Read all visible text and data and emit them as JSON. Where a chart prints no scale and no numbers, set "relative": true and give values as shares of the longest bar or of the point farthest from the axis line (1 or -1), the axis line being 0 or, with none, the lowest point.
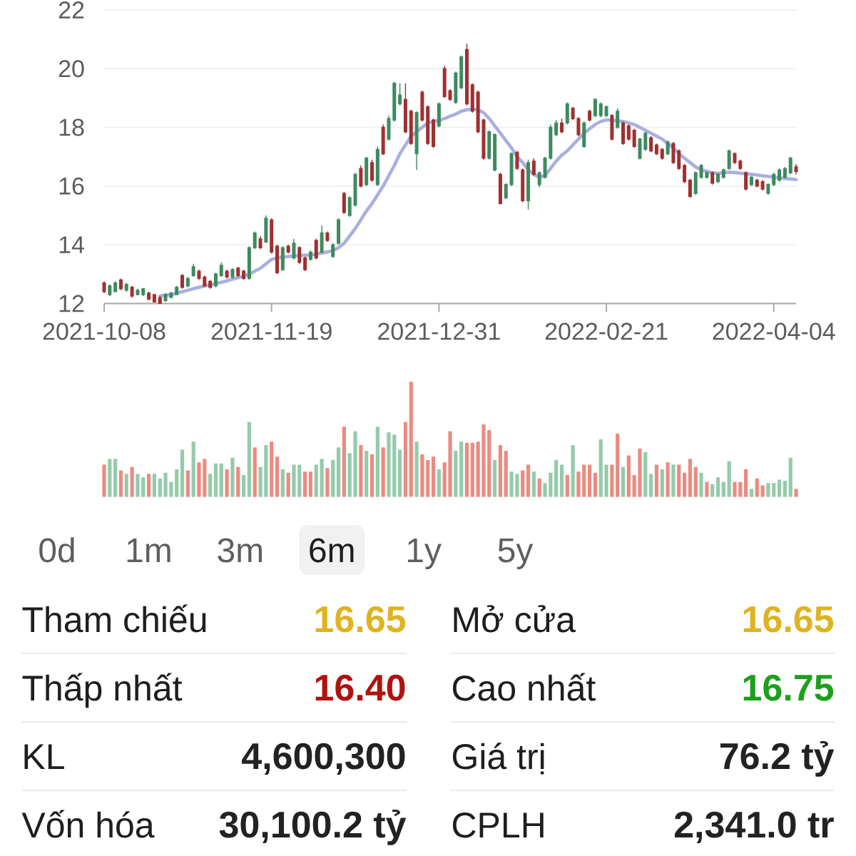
{
  "chart_data": [
    {
      "type": "candlestick",
      "categories": [
        "2021-10-08",
        null,
        null,
        null,
        null,
        null,
        null,
        null,
        null,
        null,
        null,
        null,
        null,
        null,
        null,
        null,
        null,
        null,
        null,
        null,
        null,
        null,
        null,
        null,
        null,
        null,
        null,
        null,
        null,
        null,
        "2021-11-19",
        null,
        null,
        null,
        null,
        null,
        null,
        null,
        null,
        null,
        null,
        null,
        null,
        null,
        null,
        null,
        null,
        null,
        null,
        null,
        null,
        null,
        null,
        null,
        null,
        null,
        null,
        null,
        null,
        null,
        "2021-12-31",
        null,
        null,
        null,
        null,
        null,
        null,
        null,
        null,
        null,
        null,
        null,
        null,
        null,
        null,
        null,
        null,
        null,
        null,
        null,
        null,
        null,
        null,
        null,
        null,
        null,
        null,
        null,
        null,
        null,
        "2022-02-21",
        null,
        null,
        null,
        null,
        null,
        null,
        null,
        null,
        null,
        null,
        null,
        null,
        null,
        null,
        null,
        null,
        null,
        null,
        null,
        null,
        null,
        null,
        null,
        null,
        null,
        null,
        null,
        null,
        null,
        "2022-04-04",
        null,
        null,
        null,
        null
      ],
      "ylim": [
        12,
        22
      ],
      "yticks": [
        12,
        14,
        16,
        18,
        20,
        22
      ],
      "grid": "y",
      "ohlc": [
        [
          12.7,
          12.75,
          12.35,
          12.4
        ],
        [
          12.3,
          12.65,
          12.25,
          12.6
        ],
        [
          12.4,
          12.75,
          12.4,
          12.7
        ],
        [
          12.8,
          12.85,
          12.45,
          12.5
        ],
        [
          12.45,
          12.7,
          12.4,
          12.65
        ],
        [
          12.55,
          12.6,
          12.2,
          12.25
        ],
        [
          12.3,
          12.5,
          12.3,
          12.45
        ],
        [
          12.3,
          12.5,
          12.25,
          12.5
        ],
        [
          12.35,
          12.4,
          12.1,
          12.15
        ],
        [
          12.3,
          12.3,
          12.05,
          12.05
        ],
        [
          12.2,
          12.25,
          12.0,
          12.0
        ],
        [
          12.1,
          12.35,
          12.05,
          12.3
        ],
        [
          12.2,
          12.4,
          12.2,
          12.35
        ],
        [
          12.3,
          12.6,
          12.3,
          12.55
        ],
        [
          12.95,
          13.0,
          12.5,
          12.55
        ],
        [
          12.6,
          12.9,
          12.55,
          12.85
        ],
        [
          12.95,
          13.35,
          12.9,
          13.25
        ],
        [
          13.1,
          13.15,
          12.8,
          12.85
        ],
        [
          12.9,
          12.95,
          12.55,
          12.6
        ],
        [
          12.75,
          12.8,
          12.5,
          12.55
        ],
        [
          12.6,
          13.05,
          12.55,
          13.0
        ],
        [
          12.95,
          13.4,
          12.9,
          13.3
        ],
        [
          13.1,
          13.15,
          12.85,
          12.9
        ],
        [
          12.9,
          13.2,
          12.85,
          13.15
        ],
        [
          13.2,
          13.25,
          12.9,
          12.95
        ],
        [
          13.1,
          13.15,
          12.8,
          12.85
        ],
        [
          12.85,
          13.95,
          12.8,
          13.9
        ],
        [
          13.9,
          14.45,
          13.85,
          14.4
        ],
        [
          14.2,
          14.3,
          13.85,
          13.9
        ],
        [
          14.1,
          15.0,
          14.05,
          14.9
        ],
        [
          14.85,
          14.9,
          13.7,
          13.75
        ],
        [
          13.95,
          14.0,
          13.0,
          13.05
        ],
        [
          13.15,
          13.95,
          13.1,
          13.9
        ],
        [
          13.95,
          14.0,
          13.7,
          13.75
        ],
        [
          13.55,
          14.2,
          13.5,
          14.05
        ],
        [
          13.9,
          13.95,
          13.35,
          13.4
        ],
        [
          13.55,
          13.6,
          13.1,
          13.15
        ],
        [
          13.5,
          13.8,
          13.45,
          13.75
        ],
        [
          14.15,
          14.2,
          13.5,
          13.55
        ],
        [
          13.75,
          14.65,
          13.7,
          14.4
        ],
        [
          14.4,
          14.45,
          14.1,
          14.15
        ],
        [
          13.6,
          14.05,
          13.55,
          14.0
        ],
        [
          14.05,
          14.9,
          14.0,
          14.85
        ],
        [
          15.75,
          15.8,
          15.05,
          15.1
        ],
        [
          15.0,
          15.65,
          14.95,
          15.6
        ],
        [
          15.35,
          16.45,
          15.3,
          16.4
        ],
        [
          16.6,
          16.7,
          15.95,
          16.0
        ],
        [
          16.05,
          17.0,
          16.0,
          16.95
        ],
        [
          16.8,
          16.9,
          16.15,
          16.2
        ],
        [
          16.05,
          17.35,
          16.0,
          17.25
        ],
        [
          18.0,
          18.1,
          17.05,
          17.1
        ],
        [
          17.6,
          18.4,
          17.55,
          18.3
        ],
        [
          18.25,
          19.55,
          18.2,
          19.5
        ],
        [
          18.8,
          19.5,
          18.75,
          19.1
        ],
        [
          18.95,
          19.5,
          17.8,
          17.85
        ],
        [
          18.55,
          18.6,
          17.4,
          17.45
        ],
        [
          17.1,
          18.55,
          16.55,
          18.5
        ],
        [
          19.2,
          19.25,
          18.2,
          18.25
        ],
        [
          18.7,
          18.75,
          17.4,
          17.45
        ],
        [
          18.25,
          18.3,
          17.3,
          17.35
        ],
        [
          18.05,
          18.85,
          18.0,
          18.8
        ],
        [
          20.0,
          20.1,
          19.0,
          19.05
        ],
        [
          19.25,
          19.3,
          18.9,
          18.95
        ],
        [
          18.85,
          19.9,
          18.8,
          19.85
        ],
        [
          19.35,
          20.45,
          19.3,
          20.4
        ],
        [
          20.65,
          20.85,
          18.75,
          18.8
        ],
        [
          19.45,
          19.5,
          18.5,
          18.55
        ],
        [
          19.2,
          19.25,
          17.8,
          17.85
        ],
        [
          18.25,
          18.3,
          16.9,
          16.95
        ],
        [
          16.95,
          17.9,
          16.9,
          17.85
        ],
        [
          16.55,
          17.8,
          16.5,
          17.75
        ],
        [
          16.4,
          16.45,
          15.4,
          15.4
        ],
        [
          15.6,
          16.1,
          15.55,
          16.05
        ],
        [
          16.05,
          17.15,
          16.0,
          17.1
        ],
        [
          17.15,
          17.2,
          16.55,
          16.6
        ],
        [
          16.55,
          16.6,
          15.45,
          15.5
        ],
        [
          15.5,
          16.9,
          15.2,
          16.8
        ],
        [
          16.85,
          16.95,
          16.35,
          16.4
        ],
        [
          16.05,
          16.5,
          15.95,
          16.45
        ],
        [
          16.3,
          17.0,
          16.25,
          16.95
        ],
        [
          16.95,
          18.1,
          16.9,
          18.0
        ],
        [
          17.75,
          18.25,
          17.7,
          18.15
        ],
        [
          18.15,
          18.3,
          17.8,
          17.85
        ],
        [
          18.15,
          18.85,
          18.1,
          18.8
        ],
        [
          18.65,
          18.7,
          18.25,
          18.3
        ],
        [
          18.3,
          18.35,
          17.7,
          17.75
        ],
        [
          17.35,
          18.2,
          17.3,
          18.15
        ],
        [
          18.55,
          18.6,
          18.2,
          18.25
        ],
        [
          18.4,
          19.0,
          18.35,
          18.95
        ],
        [
          18.4,
          18.85,
          18.35,
          18.8
        ],
        [
          18.4,
          18.75,
          18.35,
          18.7
        ],
        [
          18.4,
          18.45,
          17.55,
          17.6
        ],
        [
          18.0,
          18.65,
          17.95,
          18.55
        ],
        [
          18.15,
          18.2,
          17.4,
          17.45
        ],
        [
          18.05,
          18.1,
          17.55,
          17.6
        ],
        [
          17.9,
          17.95,
          17.3,
          17.35
        ],
        [
          16.95,
          17.65,
          16.9,
          17.6
        ],
        [
          17.25,
          17.85,
          17.2,
          17.8
        ],
        [
          17.65,
          17.7,
          17.15,
          17.2
        ],
        [
          17.4,
          17.45,
          17.05,
          17.1
        ],
        [
          17.25,
          17.3,
          16.9,
          16.95
        ],
        [
          17.1,
          17.55,
          17.05,
          17.5
        ],
        [
          17.45,
          17.5,
          16.75,
          16.8
        ],
        [
          17.2,
          17.25,
          16.55,
          16.6
        ],
        [
          16.7,
          16.75,
          16.1,
          16.15
        ],
        [
          16.2,
          16.25,
          15.6,
          15.65
        ],
        [
          15.75,
          16.5,
          15.7,
          16.45
        ],
        [
          16.3,
          16.75,
          16.25,
          16.7
        ],
        [
          16.3,
          16.5,
          16.25,
          16.45
        ],
        [
          16.45,
          16.5,
          16.05,
          16.1
        ],
        [
          16.15,
          16.45,
          16.1,
          16.4
        ],
        [
          16.3,
          16.6,
          16.25,
          16.55
        ],
        [
          16.6,
          17.25,
          16.55,
          17.2
        ],
        [
          17.1,
          17.15,
          16.75,
          16.8
        ],
        [
          16.85,
          16.9,
          16.55,
          16.6
        ],
        [
          16.45,
          16.5,
          15.85,
          15.9
        ],
        [
          16.05,
          16.35,
          16.0,
          16.3
        ],
        [
          16.2,
          16.25,
          15.95,
          16.0
        ],
        [
          16.15,
          16.2,
          15.85,
          15.9
        ],
        [
          15.75,
          16.1,
          15.7,
          16.05
        ],
        [
          16.05,
          16.45,
          16.0,
          16.4
        ],
        [
          16.2,
          16.6,
          16.15,
          16.55
        ],
        [
          16.3,
          16.65,
          16.25,
          16.6
        ],
        [
          16.45,
          17.0,
          16.4,
          16.95
        ],
        [
          16.65,
          16.75,
          16.4,
          16.5
        ]
      ],
      "colors": [
        "#a03030",
        "#3d8b5f",
        "#3d8b5f",
        "#a03030",
        "#3d8b5f",
        "#a03030",
        "#3d8b5f",
        "#3d8b5f",
        "#a03030",
        "#a03030",
        "#a03030",
        "#3d8b5f",
        "#3d8b5f",
        "#3d8b5f",
        "#a03030",
        "#3d8b5f",
        "#3d8b5f",
        "#a03030",
        "#a03030",
        "#a03030",
        "#3d8b5f",
        "#3d8b5f",
        "#a03030",
        "#3d8b5f",
        "#a03030",
        "#a03030",
        "#3d8b5f",
        "#3d8b5f",
        "#a03030",
        "#3d8b5f",
        "#a03030",
        "#a03030",
        "#3d8b5f",
        "#a03030",
        "#3d8b5f",
        "#a03030",
        "#a03030",
        "#3d8b5f",
        "#a03030",
        "#3d8b5f",
        "#a03030",
        "#3d8b5f",
        "#3d8b5f",
        "#a03030",
        "#3d8b5f",
        "#3d8b5f",
        "#a03030",
        "#3d8b5f",
        "#a03030",
        "#3d8b5f",
        "#a03030",
        "#3d8b5f",
        "#3d8b5f",
        "#3d8b5f",
        "#a03030",
        "#a03030",
        "#3d8b5f",
        "#a03030",
        "#a03030",
        "#a03030",
        "#3d8b5f",
        "#a03030",
        "#a03030",
        "#3d8b5f",
        "#3d8b5f",
        "#a03030",
        "#a03030",
        "#a03030",
        "#a03030",
        "#3d8b5f",
        "#3d8b5f",
        "#a03030",
        "#3d8b5f",
        "#3d8b5f",
        "#a03030",
        "#a03030",
        "#3d8b5f",
        "#a03030",
        "#3d8b5f",
        "#3d8b5f",
        "#3d8b5f",
        "#3d8b5f",
        "#a03030",
        "#3d8b5f",
        "#a03030",
        "#a03030",
        "#3d8b5f",
        "#a03030",
        "#3d8b5f",
        "#3d8b5f",
        "#3d8b5f",
        "#a03030",
        "#3d8b5f",
        "#a03030",
        "#a03030",
        "#a03030",
        "#3d8b5f",
        "#3d8b5f",
        "#a03030",
        "#a03030",
        "#a03030",
        "#3d8b5f",
        "#a03030",
        "#a03030",
        "#a03030",
        "#a03030",
        "#3d8b5f",
        "#3d8b5f",
        "#3d8b5f",
        "#a03030",
        "#3d8b5f",
        "#3d8b5f",
        "#3d8b5f",
        "#a03030",
        "#a03030",
        "#a03030",
        "#3d8b5f",
        "#a03030",
        "#a03030",
        "#3d8b5f",
        "#3d8b5f",
        "#3d8b5f",
        "#3d8b5f",
        "#3d8b5f",
        "#a03030"
      ],
      "series": [
        {
          "type": "line",
          "color": "#a8b0de",
          "values": [
            null,
            null,
            null,
            null,
            null,
            null,
            null,
            null,
            null,
            null,
            12.26,
            12.28,
            12.3,
            12.35,
            12.4,
            12.45,
            12.5,
            12.55,
            12.6,
            12.63,
            12.67,
            12.72,
            12.77,
            12.83,
            12.88,
            12.93,
            13.0,
            13.1,
            13.2,
            13.35,
            13.5,
            13.55,
            13.58,
            13.6,
            13.62,
            13.63,
            13.64,
            13.65,
            13.68,
            13.72,
            13.75,
            13.8,
            13.9,
            14.05,
            14.3,
            14.55,
            14.85,
            15.15,
            15.4,
            15.7,
            16.0,
            16.35,
            16.7,
            17.1,
            17.4,
            17.7,
            17.85,
            18.0,
            18.15,
            18.2,
            18.23,
            18.3,
            18.38,
            18.45,
            18.55,
            18.6,
            18.62,
            18.6,
            18.5,
            18.3,
            18.05,
            17.8,
            17.55,
            17.3,
            17.0,
            16.8,
            16.55,
            16.4,
            16.3,
            16.35,
            16.6,
            16.85,
            17.05,
            17.2,
            17.4,
            17.6,
            17.8,
            17.95,
            18.1,
            18.2,
            18.25,
            18.25,
            18.22,
            18.2,
            18.15,
            18.1,
            18.0,
            17.9,
            17.8,
            17.7,
            17.6,
            17.45,
            17.3,
            17.1,
            16.95,
            16.8,
            16.65,
            16.55,
            16.5,
            16.45,
            16.43,
            16.45,
            16.47,
            16.46,
            16.44,
            16.42,
            16.4,
            16.38,
            16.35,
            16.33,
            16.3,
            16.28,
            16.26,
            16.24,
            16.22
          ]
        }
      ]
    },
    {
      "type": "bar",
      "relative": true,
      "tick_labels": false,
      "categories": [
        null,
        null,
        null,
        null,
        null,
        null,
        null,
        null,
        null,
        null,
        null,
        null,
        null,
        null,
        null,
        null,
        null,
        null,
        null,
        null,
        null,
        null,
        null,
        null,
        null,
        null,
        null,
        null,
        null,
        null,
        null,
        null,
        null,
        null,
        null,
        null,
        null,
        null,
        null,
        null,
        null,
        null,
        null,
        null,
        null,
        null,
        null,
        null,
        null,
        null,
        null,
        null,
        null,
        null,
        null,
        null,
        null,
        null,
        null,
        null,
        null,
        null,
        null,
        null,
        null,
        null,
        null,
        null,
        null,
        null,
        null,
        null,
        null,
        null,
        null,
        null,
        null,
        null,
        null,
        null,
        null,
        null,
        null,
        null,
        null,
        null,
        null,
        null,
        null,
        null,
        null,
        null,
        null,
        null,
        null,
        null,
        null,
        null,
        null,
        null,
        null,
        null,
        null,
        null,
        null,
        null,
        null,
        null,
        null,
        null,
        null,
        null,
        null,
        null,
        null,
        null,
        null,
        null,
        null,
        null,
        null,
        null,
        null,
        null,
        null
      ],
      "values": [
        0.28,
        0.33,
        0.33,
        0.23,
        0.2,
        0.26,
        0.2,
        0.17,
        0.2,
        0.2,
        0.16,
        0.21,
        0.13,
        0.24,
        0.41,
        0.23,
        0.48,
        0.3,
        0.33,
        0.2,
        0.29,
        0.29,
        0.24,
        0.34,
        0.26,
        0.19,
        0.65,
        0.43,
        0.26,
        0.45,
        0.48,
        0.35,
        0.24,
        0.21,
        0.28,
        0.28,
        0.22,
        0.22,
        0.28,
        0.33,
        0.25,
        0.32,
        0.43,
        0.61,
        0.38,
        0.57,
        0.45,
        0.4,
        0.37,
        0.61,
        0.43,
        0.56,
        0.54,
        0.41,
        0.65,
        1,
        0.48,
        0.37,
        0.32,
        0.35,
        0.24,
        0.3,
        0.57,
        0.4,
        0.48,
        0.47,
        0.47,
        0.48,
        0.63,
        0.58,
        0.32,
        0.45,
        0.4,
        0.22,
        0.2,
        0.23,
        0.28,
        0.22,
        0.16,
        0.12,
        0.21,
        0.32,
        0.28,
        0.19,
        0.45,
        0.22,
        0.28,
        0.28,
        0.21,
        0.5,
        0.28,
        0.28,
        0.55,
        0.26,
        0.36,
        0.19,
        0.42,
        0.39,
        0.2,
        0.28,
        0.24,
        0.3,
        0.28,
        0.28,
        0.21,
        0.33,
        0.26,
        0.21,
        0.13,
        0.11,
        0.17,
        0.13,
        0.31,
        0.13,
        0.13,
        0.24,
        0.07,
        0.16,
        0.1,
        0.12,
        0.12,
        0.15,
        0.14,
        0.34,
        0.07
      ],
      "colors": [
        "#eb8b80",
        "#94cbab",
        "#94cbab",
        "#eb8b80",
        "#94cbab",
        "#eb8b80",
        "#94cbab",
        "#94cbab",
        "#eb8b80",
        "#94cbab",
        "#94cbab",
        "#94cbab",
        "#94cbab",
        "#94cbab",
        "#94cbab",
        "#eb8b80",
        "#94cbab",
        "#eb8b80",
        "#eb8b80",
        "#94cbab",
        "#94cbab",
        "#94cbab",
        "#eb8b80",
        "#94cbab",
        "#eb8b80",
        "#94cbab",
        "#94cbab",
        "#eb8b80",
        "#94cbab",
        "#94cbab",
        "#eb8b80",
        "#eb8b80",
        "#94cbab",
        "#eb8b80",
        "#94cbab",
        "#94cbab",
        "#eb8b80",
        "#eb8b80",
        "#94cbab",
        "#94cbab",
        "#eb8b80",
        "#94cbab",
        "#94cbab",
        "#eb8b80",
        "#94cbab",
        "#94cbab",
        "#eb8b80",
        "#94cbab",
        "#eb8b80",
        "#94cbab",
        "#eb8b80",
        "#94cbab",
        "#94cbab",
        "#94cbab",
        "#eb8b80",
        "#eb8b80",
        "#94cbab",
        "#eb8b80",
        "#eb8b80",
        "#eb8b80",
        "#94cbab",
        "#eb8b80",
        "#eb8b80",
        "#94cbab",
        "#94cbab",
        "#eb8b80",
        "#eb8b80",
        "#eb8b80",
        "#eb8b80",
        "#eb8b80",
        "#94cbab",
        "#eb8b80",
        "#eb8b80",
        "#94cbab",
        "#94cbab",
        "#eb8b80",
        "#eb8b80",
        "#94cbab",
        "#eb8b80",
        "#94cbab",
        "#94cbab",
        "#94cbab",
        "#94cbab",
        "#eb8b80",
        "#94cbab",
        "#eb8b80",
        "#eb8b80",
        "#eb8b80",
        "#eb8b80",
        "#94cbab",
        "#94cbab",
        "#eb8b80",
        "#eb8b80",
        "#94cbab",
        "#eb8b80",
        "#eb8b80",
        "#eb8b80",
        "#94cbab",
        "#94cbab",
        "#eb8b80",
        "#94cbab",
        "#eb8b80",
        "#94cbab",
        "#eb8b80",
        "#eb8b80",
        "#eb8b80",
        "#eb8b80",
        "#94cbab",
        "#eb8b80",
        "#94cbab",
        "#94cbab",
        "#94cbab",
        "#94cbab",
        "#eb8b80",
        "#eb8b80",
        "#eb8b80",
        "#94cbab",
        "#eb8b80",
        "#eb8b80",
        "#94cbab",
        "#94cbab",
        "#94cbab",
        "#94cbab",
        "#94cbab",
        "#eb8b80"
      ]
    },
    {
      "type": "other",
      "annotations": [
        "0d",
        "1m",
        "3m",
        "6m",
        "1y",
        "5y"
      ],
      "categories": [
        "Tham chiếu",
        "Mở cửa",
        "Thấp nhất",
        "Cao nhất",
        "KL",
        "Giá trị",
        "Vốn hóa",
        "CPLH"
      ],
      "value_labels": [
        "16.65",
        "16.65",
        "16.40",
        "16.75",
        "4,600,300",
        "76.2 tỷ",
        "30,100.2 tỷ",
        "2,341.0 tr"
      ],
      "colors": [
        "#dfb321",
        "#dfb321",
        "#b0130f",
        "#1ca01c",
        "#222222",
        "#222222",
        "#222222",
        "#222222"
      ]
    }
  ]
}
